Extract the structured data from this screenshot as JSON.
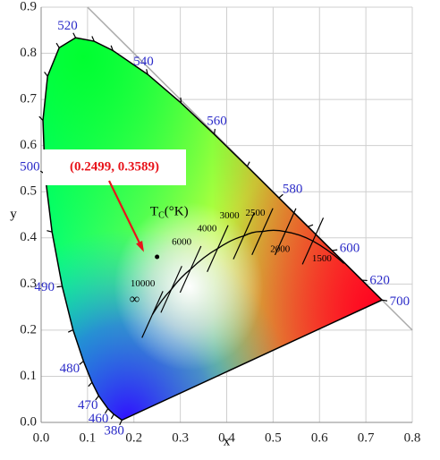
{
  "chart_data": {
    "type": "scatter",
    "xlabel": "x",
    "ylabel": "y",
    "xlim": [
      0,
      0.8
    ],
    "ylim": [
      0,
      0.9
    ],
    "xticks": [
      {
        "value": 0,
        "label": "0.0"
      },
      0.1,
      0.2,
      0.3,
      0.4,
      0.5,
      0.6,
      0.7,
      0.8
    ],
    "yticks": [
      {
        "value": 0,
        "label": "0.0"
      },
      0.1,
      0.2,
      0.3,
      0.4,
      0.5,
      0.6,
      0.7,
      0.8,
      0.9
    ],
    "grid": true,
    "spectral_locus": {
      "labels": [
        "380",
        null,
        "460",
        "470",
        null,
        "480",
        null,
        "490",
        null,
        "500",
        null,
        null,
        null,
        "520",
        null,
        null,
        "540",
        null,
        "560",
        null,
        "580",
        null,
        "600",
        "620",
        "700"
      ],
      "x": [
        0.1741,
        0.1566,
        0.144,
        0.1241,
        0.1096,
        0.0913,
        0.0687,
        0.0454,
        0.0235,
        0.0082,
        0.0039,
        0.0139,
        0.0389,
        0.0743,
        0.1142,
        0.1547,
        0.2296,
        0.3016,
        0.3731,
        0.4441,
        0.5125,
        0.5752,
        0.627,
        0.6915,
        0.7347
      ],
      "y": [
        0.005,
        0.0177,
        0.0297,
        0.0578,
        0.0868,
        0.1327,
        0.2007,
        0.295,
        0.4127,
        0.5384,
        0.6548,
        0.7502,
        0.812,
        0.8338,
        0.8262,
        0.8059,
        0.7543,
        0.6923,
        0.6245,
        0.5547,
        0.4866,
        0.4242,
        0.3725,
        0.3083,
        0.2653
      ]
    },
    "planckian_locus": {
      "title": {
        "base": "T",
        "sub": "C",
        "unit": "(°K)"
      },
      "labels": [
        null,
        "1500",
        "2000",
        "2500",
        "3000",
        "4000",
        "6000",
        "10000",
        "∞"
      ],
      "x": [
        0.6528,
        0.5857,
        0.5267,
        0.477,
        0.4369,
        0.3805,
        0.3221,
        0.2807,
        0.2399
      ],
      "y": [
        0.3444,
        0.3931,
        0.4133,
        0.4137,
        0.4041,
        0.3768,
        0.3318,
        0.2884,
        0.234
      ]
    },
    "point": {
      "x": 0.2499,
      "y": 0.3589,
      "color": "#000000"
    },
    "annotation": "(0.2499, 0.3589)",
    "annotation_color": "#e8141b"
  }
}
